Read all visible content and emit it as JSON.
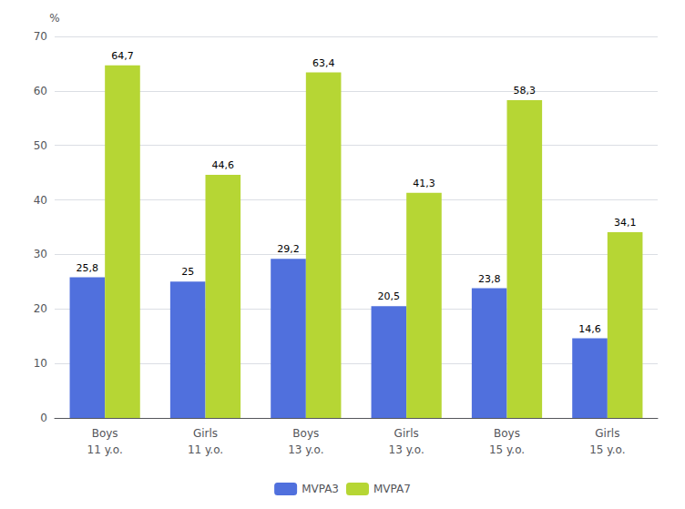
{
  "chart_data": {
    "type": "bar",
    "y_label": "%",
    "categories": [
      "Boys\n11 y.o.",
      "Girls\n11 y.o.",
      "Boys\n13 y.o.",
      "Girls\n13 y.o.",
      "Boys\n15 y.o.",
      "Girls\n15 y.o."
    ],
    "series": [
      {
        "name": "MVPA3",
        "values": [
          25.8,
          25.0,
          29.2,
          20.5,
          23.8,
          14.6
        ],
        "value_labels": [
          "25,8",
          "25",
          "29,2",
          "20,5",
          "23,8",
          "14,6"
        ]
      },
      {
        "name": "MVPA7",
        "values": [
          64.7,
          44.6,
          63.4,
          41.3,
          58.3,
          34.1
        ],
        "value_labels": [
          "64,7",
          "44,6",
          "63,4",
          "41,3",
          "58,3",
          "34,1"
        ]
      }
    ],
    "ylim": [
      0,
      70
    ],
    "yticks": [
      0,
      10,
      20,
      30,
      40,
      50,
      60,
      70
    ],
    "grid": true,
    "legend": "bottom",
    "data_labels": true
  }
}
